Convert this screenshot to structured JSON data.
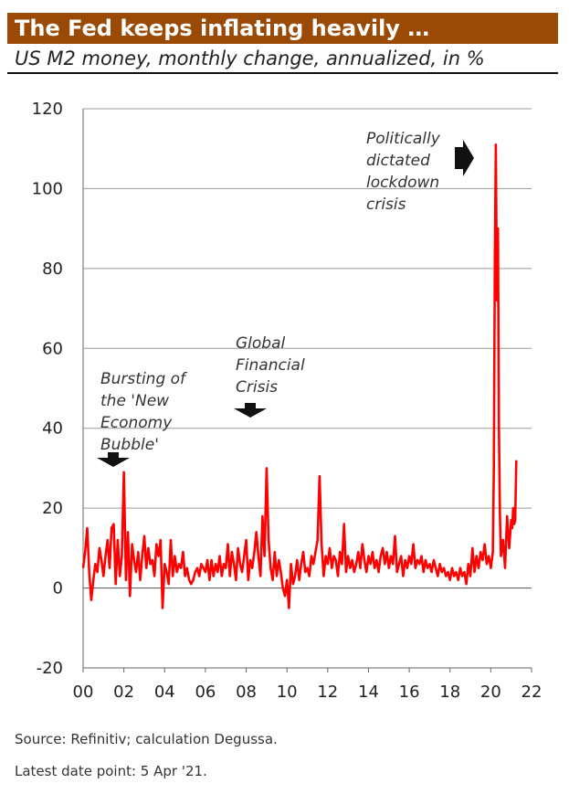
{
  "header": {
    "title": "The Fed keeps inflating heavily …",
    "subtitle": "US M2 money, monthly change, annualized, in %"
  },
  "footer": {
    "source": "Source: Refinitiv; calculation Degussa.",
    "latest": "Latest date point: 5 Apr '21."
  },
  "colors": {
    "title_bg": "#9a4a05",
    "line": "#ff0000",
    "grid": "#999999"
  },
  "chart_data": {
    "type": "line",
    "title": "",
    "xlabel": "",
    "ylabel": "",
    "xlim": [
      2000,
      2022
    ],
    "ylim": [
      -20,
      120
    ],
    "grid": true,
    "x_ticks": [
      "00",
      "02",
      "04",
      "06",
      "08",
      "10",
      "12",
      "14",
      "16",
      "18",
      "20",
      "22"
    ],
    "y_ticks": [
      "120",
      "100",
      "80",
      "60",
      "40",
      "20",
      "0",
      "-20"
    ],
    "series": [
      {
        "color": "#ff0000",
        "points": [
          [
            2000.0,
            5
          ],
          [
            2000.1,
            9
          ],
          [
            2000.2,
            15
          ],
          [
            2000.3,
            4
          ],
          [
            2000.4,
            -3
          ],
          [
            2000.5,
            2
          ],
          [
            2000.6,
            6
          ],
          [
            2000.7,
            4
          ],
          [
            2000.8,
            10
          ],
          [
            2000.9,
            7
          ],
          [
            2001.0,
            3
          ],
          [
            2001.1,
            8
          ],
          [
            2001.2,
            12
          ],
          [
            2001.3,
            5
          ],
          [
            2001.4,
            15
          ],
          [
            2001.5,
            16
          ],
          [
            2001.6,
            1
          ],
          [
            2001.7,
            12
          ],
          [
            2001.8,
            3
          ],
          [
            2001.9,
            8
          ],
          [
            2002.0,
            29
          ],
          [
            2002.1,
            2
          ],
          [
            2002.2,
            14
          ],
          [
            2002.3,
            -2
          ],
          [
            2002.4,
            11
          ],
          [
            2002.5,
            7
          ],
          [
            2002.6,
            4
          ],
          [
            2002.7,
            9
          ],
          [
            2002.8,
            2
          ],
          [
            2002.9,
            8
          ],
          [
            2003.0,
            13
          ],
          [
            2003.1,
            5
          ],
          [
            2003.2,
            10
          ],
          [
            2003.3,
            6
          ],
          [
            2003.4,
            7
          ],
          [
            2003.5,
            3
          ],
          [
            2003.6,
            11
          ],
          [
            2003.7,
            8
          ],
          [
            2003.8,
            12
          ],
          [
            2003.9,
            -5
          ],
          [
            2004.0,
            6
          ],
          [
            2004.1,
            4
          ],
          [
            2004.2,
            1
          ],
          [
            2004.3,
            12
          ],
          [
            2004.4,
            3
          ],
          [
            2004.5,
            8
          ],
          [
            2004.6,
            4
          ],
          [
            2004.7,
            6
          ],
          [
            2004.8,
            5
          ],
          [
            2004.9,
            9
          ],
          [
            2005.0,
            3
          ],
          [
            2005.1,
            5
          ],
          [
            2005.2,
            2
          ],
          [
            2005.3,
            1
          ],
          [
            2005.4,
            2
          ],
          [
            2005.5,
            4
          ],
          [
            2005.6,
            5
          ],
          [
            2005.7,
            3
          ],
          [
            2005.8,
            6
          ],
          [
            2005.9,
            5
          ],
          [
            2006.0,
            4
          ],
          [
            2006.1,
            7
          ],
          [
            2006.2,
            2
          ],
          [
            2006.3,
            7
          ],
          [
            2006.4,
            3
          ],
          [
            2006.5,
            6
          ],
          [
            2006.6,
            4
          ],
          [
            2006.7,
            8
          ],
          [
            2006.8,
            3
          ],
          [
            2006.9,
            6
          ],
          [
            2007.0,
            5
          ],
          [
            2007.1,
            11
          ],
          [
            2007.2,
            3
          ],
          [
            2007.3,
            9
          ],
          [
            2007.4,
            6
          ],
          [
            2007.5,
            2
          ],
          [
            2007.6,
            10
          ],
          [
            2007.7,
            6
          ],
          [
            2007.8,
            4
          ],
          [
            2007.9,
            8
          ],
          [
            2008.0,
            12
          ],
          [
            2008.1,
            2
          ],
          [
            2008.2,
            7
          ],
          [
            2008.3,
            5
          ],
          [
            2008.4,
            9
          ],
          [
            2008.5,
            14
          ],
          [
            2008.6,
            8
          ],
          [
            2008.7,
            3
          ],
          [
            2008.8,
            18
          ],
          [
            2008.9,
            8
          ],
          [
            2009.0,
            30
          ],
          [
            2009.1,
            12
          ],
          [
            2009.2,
            5
          ],
          [
            2009.3,
            2
          ],
          [
            2009.4,
            9
          ],
          [
            2009.5,
            3
          ],
          [
            2009.6,
            7
          ],
          [
            2009.7,
            4
          ],
          [
            2009.8,
            0
          ],
          [
            2009.9,
            -2
          ],
          [
            2010.0,
            2
          ],
          [
            2010.1,
            -5
          ],
          [
            2010.2,
            6
          ],
          [
            2010.3,
            1
          ],
          [
            2010.4,
            3
          ],
          [
            2010.5,
            7
          ],
          [
            2010.6,
            2
          ],
          [
            2010.7,
            6
          ],
          [
            2010.8,
            9
          ],
          [
            2010.9,
            4
          ],
          [
            2011.0,
            5
          ],
          [
            2011.1,
            3
          ],
          [
            2011.2,
            8
          ],
          [
            2011.3,
            6
          ],
          [
            2011.4,
            9
          ],
          [
            2011.5,
            12
          ],
          [
            2011.6,
            28
          ],
          [
            2011.7,
            11
          ],
          [
            2011.8,
            3
          ],
          [
            2011.9,
            8
          ],
          [
            2012.0,
            6
          ],
          [
            2012.1,
            10
          ],
          [
            2012.2,
            5
          ],
          [
            2012.3,
            8
          ],
          [
            2012.4,
            7
          ],
          [
            2012.5,
            3
          ],
          [
            2012.6,
            9
          ],
          [
            2012.7,
            6
          ],
          [
            2012.8,
            16
          ],
          [
            2012.9,
            4
          ],
          [
            2013.0,
            8
          ],
          [
            2013.1,
            5
          ],
          [
            2013.2,
            7
          ],
          [
            2013.3,
            4
          ],
          [
            2013.4,
            6
          ],
          [
            2013.5,
            9
          ],
          [
            2013.6,
            5
          ],
          [
            2013.7,
            11
          ],
          [
            2013.8,
            7
          ],
          [
            2013.9,
            4
          ],
          [
            2014.0,
            8
          ],
          [
            2014.1,
            6
          ],
          [
            2014.2,
            9
          ],
          [
            2014.3,
            5
          ],
          [
            2014.4,
            7
          ],
          [
            2014.5,
            4
          ],
          [
            2014.6,
            8
          ],
          [
            2014.7,
            10
          ],
          [
            2014.8,
            6
          ],
          [
            2014.9,
            9
          ],
          [
            2015.0,
            5
          ],
          [
            2015.1,
            8
          ],
          [
            2015.2,
            6
          ],
          [
            2015.3,
            13
          ],
          [
            2015.4,
            4
          ],
          [
            2015.5,
            6
          ],
          [
            2015.6,
            8
          ],
          [
            2015.7,
            3
          ],
          [
            2015.8,
            7
          ],
          [
            2015.9,
            5
          ],
          [
            2016.0,
            8
          ],
          [
            2016.1,
            6
          ],
          [
            2016.2,
            11
          ],
          [
            2016.3,
            5
          ],
          [
            2016.4,
            7
          ],
          [
            2016.5,
            6
          ],
          [
            2016.6,
            8
          ],
          [
            2016.7,
            4
          ],
          [
            2016.8,
            7
          ],
          [
            2016.9,
            5
          ],
          [
            2017.0,
            6
          ],
          [
            2017.1,
            4
          ],
          [
            2017.2,
            7
          ],
          [
            2017.3,
            5
          ],
          [
            2017.4,
            3
          ],
          [
            2017.5,
            6
          ],
          [
            2017.6,
            4
          ],
          [
            2017.7,
            5
          ],
          [
            2017.8,
            3
          ],
          [
            2017.9,
            4
          ],
          [
            2018.0,
            2
          ],
          [
            2018.1,
            5
          ],
          [
            2018.2,
            3
          ],
          [
            2018.3,
            4
          ],
          [
            2018.4,
            2
          ],
          [
            2018.5,
            5
          ],
          [
            2018.6,
            3
          ],
          [
            2018.7,
            4
          ],
          [
            2018.8,
            1
          ],
          [
            2018.9,
            6
          ],
          [
            2019.0,
            3
          ],
          [
            2019.1,
            10
          ],
          [
            2019.2,
            4
          ],
          [
            2019.3,
            8
          ],
          [
            2019.4,
            5
          ],
          [
            2019.5,
            9
          ],
          [
            2019.6,
            7
          ],
          [
            2019.7,
            11
          ],
          [
            2019.8,
            6
          ],
          [
            2019.9,
            8
          ],
          [
            2020.0,
            5
          ],
          [
            2020.1,
            9
          ],
          [
            2020.15,
            30
          ],
          [
            2020.2,
            82
          ],
          [
            2020.25,
            111
          ],
          [
            2020.3,
            72
          ],
          [
            2020.35,
            90
          ],
          [
            2020.4,
            40
          ],
          [
            2020.45,
            18
          ],
          [
            2020.5,
            8
          ],
          [
            2020.6,
            12
          ],
          [
            2020.7,
            5
          ],
          [
            2020.8,
            18
          ],
          [
            2020.9,
            10
          ],
          [
            2021.0,
            17
          ],
          [
            2021.05,
            15
          ],
          [
            2021.1,
            20
          ],
          [
            2021.15,
            16
          ],
          [
            2021.2,
            17
          ],
          [
            2021.25,
            32
          ]
        ]
      }
    ],
    "annotations": [
      {
        "text_lines": [
          "Bursting of",
          "the 'New",
          "Economy",
          "Bubble'"
        ],
        "arrow": "down"
      },
      {
        "text_lines": [
          "Global",
          "Financial",
          "Crisis"
        ],
        "arrow": "down"
      },
      {
        "text_lines": [
          "Politically",
          "dictated",
          "lockdown",
          "crisis"
        ],
        "arrow": "right"
      }
    ]
  }
}
